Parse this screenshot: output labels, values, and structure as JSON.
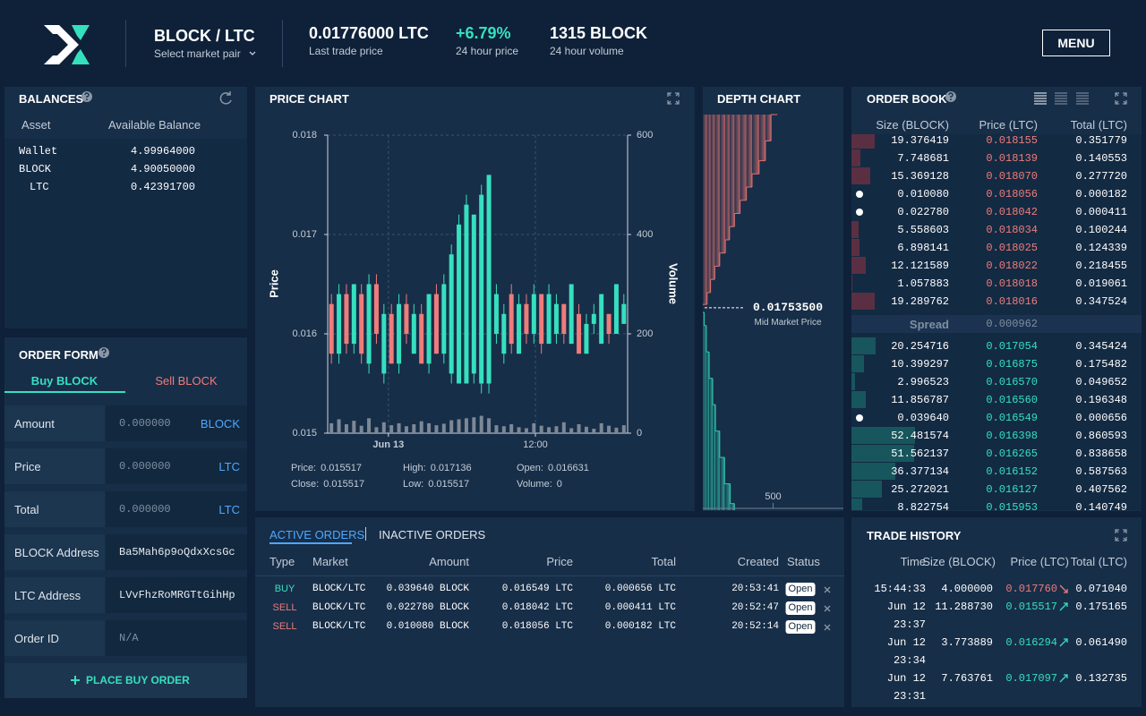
{
  "header": {
    "pair": "BLOCK / LTC",
    "pair_select": "Select market pair",
    "last_price": "0.01776000 LTC",
    "last_price_label": "Last trade price",
    "change": "+6.79%",
    "change_label": "24 hour price",
    "volume": "1315 BLOCK",
    "volume_label": "24 hour volume",
    "menu": "MENU"
  },
  "balances": {
    "title": "BALANCES",
    "columns": [
      "Asset",
      "Available Balance"
    ],
    "rows": [
      [
        "Wallet",
        "4.99964000"
      ],
      [
        "BLOCK",
        "4.90050000"
      ],
      [
        "LTC",
        "0.42391700"
      ]
    ]
  },
  "order_form": {
    "title": "ORDER FORM",
    "tabs": [
      "Buy BLOCK",
      "Sell BLOCK"
    ],
    "fields": [
      {
        "label": "Amount",
        "value": "0.000000",
        "unit": "BLOCK"
      },
      {
        "label": "Price",
        "value": "0.000000",
        "unit": "LTC"
      },
      {
        "label": "Total",
        "value": "0.000000",
        "unit": "LTC"
      },
      {
        "label": "BLOCK Address",
        "value": "Ba5Mah6p9oQdxXcsGc"
      },
      {
        "label": "LTC Address",
        "value": "LVvFhzRoMRGTtGihHp"
      },
      {
        "label": "Order ID",
        "value": "N/A"
      }
    ],
    "button": "PLACE BUY ORDER"
  },
  "price_chart": {
    "type": "candlestick",
    "title": "PRICE CHART",
    "ylabel": "Price",
    "y2label": "Volume",
    "ylim": [
      0.015,
      0.018
    ],
    "yticks": [
      0.015,
      0.016,
      0.017,
      0.018
    ],
    "y2lim": [
      0,
      600
    ],
    "y2ticks": [
      0,
      200,
      400,
      600
    ],
    "xlim": [
      0,
      40
    ],
    "xticks": [
      {
        "value": 8.1,
        "label": "Jun 13"
      },
      {
        "value": 27.7,
        "label": "12:00"
      }
    ],
    "grid": true,
    "up_color": "#35e0bf",
    "down_color": "#ee7c7a",
    "volume_color": "#7d8896",
    "candles": {
      "open": [
        0.0163,
        0.0158,
        0.0164,
        0.0159,
        0.0164,
        0.0157,
        0.0165,
        0.0156,
        0.0162,
        0.0157,
        0.0163,
        0.0158,
        0.0162,
        0.0157,
        0.0164,
        0.0158,
        0.0156,
        0.0155,
        0.0155,
        0.0156,
        0.0155,
        0.0155,
        0.016,
        0.0158,
        0.0164,
        0.0158,
        0.0163,
        0.016,
        0.0164,
        0.0159,
        0.016,
        0.0163,
        0.0159,
        0.0162,
        0.0158,
        0.0161,
        0.0159,
        0.0162,
        0.016,
        0.0161
      ],
      "high": [
        0.0164,
        0.0165,
        0.0165,
        0.0165,
        0.0165,
        0.0166,
        0.0166,
        0.0163,
        0.0163,
        0.0164,
        0.0164,
        0.0163,
        0.0163,
        0.0164,
        0.0165,
        0.0166,
        0.0169,
        0.0172,
        0.0174,
        0.0172,
        0.0175,
        0.0176,
        0.0165,
        0.0163,
        0.0165,
        0.0164,
        0.0164,
        0.0165,
        0.0164,
        0.0165,
        0.0164,
        0.0163,
        0.0165,
        0.0163,
        0.0162,
        0.0163,
        0.0164,
        0.0162,
        0.0165,
        0.0164
      ],
      "low": [
        0.0157,
        0.0157,
        0.0158,
        0.0158,
        0.0157,
        0.0156,
        0.0159,
        0.0155,
        0.0157,
        0.0156,
        0.0159,
        0.0158,
        0.0157,
        0.0156,
        0.0158,
        0.0157,
        0.0155,
        0.0155,
        0.0155,
        0.0155,
        0.0154,
        0.0154,
        0.0159,
        0.0157,
        0.0158,
        0.0158,
        0.0159,
        0.0159,
        0.0158,
        0.0159,
        0.0159,
        0.0159,
        0.0159,
        0.0158,
        0.0158,
        0.016,
        0.0159,
        0.0159,
        0.016,
        0.0161
      ],
      "close": [
        0.0158,
        0.0164,
        0.0159,
        0.0165,
        0.0158,
        0.0165,
        0.016,
        0.0162,
        0.0157,
        0.0163,
        0.016,
        0.0162,
        0.0157,
        0.0164,
        0.0158,
        0.0165,
        0.0168,
        0.0171,
        0.0173,
        0.0172,
        0.0174,
        0.0176,
        0.0164,
        0.0162,
        0.0159,
        0.0163,
        0.016,
        0.0164,
        0.0159,
        0.0164,
        0.0163,
        0.016,
        0.0165,
        0.0158,
        0.0161,
        0.0162,
        0.0164,
        0.016,
        0.0165,
        0.0163
      ],
      "volume": [
        20,
        28,
        18,
        25,
        15,
        30,
        12,
        22,
        16,
        20,
        14,
        18,
        24,
        20,
        16,
        19,
        26,
        28,
        30,
        32,
        35,
        30,
        16,
        14,
        18,
        12,
        10,
        20,
        15,
        12,
        14,
        22,
        10,
        18,
        13,
        9,
        20,
        15,
        11,
        16
      ]
    },
    "info": [
      {
        "label": "Price:",
        "value": "0.015517"
      },
      {
        "label": "High:",
        "value": "0.017136"
      },
      {
        "label": "Open:",
        "value": "0.016631"
      },
      {
        "label": "Close:",
        "value": "0.015517"
      },
      {
        "label": "Low:",
        "value": "0.015517"
      },
      {
        "label": "Volume:",
        "value": "0"
      }
    ]
  },
  "depth_chart": {
    "type": "depth",
    "title": "DEPTH CHART",
    "mid": "0.01753500",
    "mid_label": "Mid Market Price",
    "ylim": [
      0.016,
      0.019
    ],
    "xlim": [
      0,
      1000
    ],
    "xticks": [
      500
    ],
    "ask_color": "#e0716f",
    "bid_color": "#2ec9ad",
    "asks": {
      "prices": [
        0.01756,
        0.01765,
        0.01775,
        0.01785,
        0.01795,
        0.01805,
        0.01815,
        0.01825,
        0.01835,
        0.01845,
        0.01855,
        0.01865,
        0.0188,
        0.019
      ],
      "sizes": [
        30,
        25,
        30,
        35,
        40,
        30,
        35,
        40,
        45,
        40,
        50,
        45,
        40,
        45
      ]
    },
    "bids": {
      "prices": [
        0.0175,
        0.0174,
        0.0172,
        0.017,
        0.0168,
        0.0166,
        0.0164,
        0.0162,
        0.01605
      ],
      "sizes": [
        10,
        15,
        20,
        25,
        20,
        30,
        35,
        40,
        30
      ]
    }
  },
  "order_book": {
    "title": "ORDER BOOK",
    "columns": [
      "Size (BLOCK)",
      "Price (LTC)",
      "Total (LTC)"
    ],
    "ask_color": "#ee7c7a",
    "bid_color": "#35e0bf",
    "asks": [
      {
        "size": "19.376419",
        "price": "0.018155",
        "total": "0.351779",
        "mine": false
      },
      {
        "size": "7.748681",
        "price": "0.018139",
        "total": "0.140553",
        "mine": false
      },
      {
        "size": "15.369128",
        "price": "0.018070",
        "total": "0.277720",
        "mine": false
      },
      {
        "size": "0.010080",
        "price": "0.018056",
        "total": "0.000182",
        "mine": true
      },
      {
        "size": "0.022780",
        "price": "0.018042",
        "total": "0.000411",
        "mine": true
      },
      {
        "size": "5.558603",
        "price": "0.018034",
        "total": "0.100244",
        "mine": false
      },
      {
        "size": "6.898141",
        "price": "0.018025",
        "total": "0.124339",
        "mine": false
      },
      {
        "size": "12.121589",
        "price": "0.018022",
        "total": "0.218455",
        "mine": false
      },
      {
        "size": "1.057883",
        "price": "0.018018",
        "total": "0.019061",
        "mine": false
      },
      {
        "size": "19.289762",
        "price": "0.018016",
        "total": "0.347524",
        "mine": false
      }
    ],
    "spread_label": "Spread",
    "spread": "0.000962",
    "bids": [
      {
        "size": "20.254716",
        "price": "0.017054",
        "total": "0.345424",
        "mine": false
      },
      {
        "size": "10.399297",
        "price": "0.016875",
        "total": "0.175482",
        "mine": false
      },
      {
        "size": "2.996523",
        "price": "0.016570",
        "total": "0.049652",
        "mine": false
      },
      {
        "size": "11.856787",
        "price": "0.016560",
        "total": "0.196348",
        "mine": false
      },
      {
        "size": "0.039640",
        "price": "0.016549",
        "total": "0.000656",
        "mine": true
      },
      {
        "size": "52.481574",
        "price": "0.016398",
        "total": "0.860593",
        "mine": false
      },
      {
        "size": "51.562137",
        "price": "0.016265",
        "total": "0.838658",
        "mine": false
      },
      {
        "size": "36.377134",
        "price": "0.016152",
        "total": "0.587563",
        "mine": false
      },
      {
        "size": "25.272021",
        "price": "0.016127",
        "total": "0.407562",
        "mine": false
      },
      {
        "size": "8.822754",
        "price": "0.015953",
        "total": "0.140749",
        "mine": false
      }
    ]
  },
  "active_orders": {
    "tabs": [
      "ACTIVE ORDERS",
      "INACTIVE ORDERS"
    ],
    "columns": [
      "Type",
      "Market",
      "Amount",
      "Price",
      "Total",
      "Created",
      "Status"
    ],
    "rows": [
      {
        "type": "BUY",
        "color": "#35e0bf",
        "market": "BLOCK/LTC",
        "amount": "0.039640 BLOCK",
        "price": "0.016549 LTC",
        "total": "0.000656 LTC",
        "created": "20:53:41",
        "status": "Open"
      },
      {
        "type": "SELL",
        "color": "#ee7c7a",
        "market": "BLOCK/LTC",
        "amount": "0.022780 BLOCK",
        "price": "0.018042 LTC",
        "total": "0.000411 LTC",
        "created": "20:52:47",
        "status": "Open"
      },
      {
        "type": "SELL",
        "color": "#ee7c7a",
        "market": "BLOCK/LTC",
        "amount": "0.010080 BLOCK",
        "price": "0.018056 LTC",
        "total": "0.000182 LTC",
        "created": "20:52:14",
        "status": "Open"
      }
    ]
  },
  "trade_history": {
    "title": "TRADE HISTORY",
    "columns": [
      "Time",
      "Size (BLOCK)",
      "Price (LTC)",
      "Total (LTC)"
    ],
    "rows": [
      {
        "time": [
          "15:44:33"
        ],
        "size": "4.000000",
        "price": "0.017760",
        "trend": "down",
        "color": "#ee7c7a",
        "total": "0.071040"
      },
      {
        "time": [
          "Jun 12",
          "23:37"
        ],
        "size": "11.288730",
        "price": "0.015517",
        "trend": "up",
        "color": "#35e0bf",
        "total": "0.175165"
      },
      {
        "time": [
          "Jun 12",
          "23:34"
        ],
        "size": "3.773889",
        "price": "0.016294",
        "trend": "up",
        "color": "#35e0bf",
        "total": "0.061490"
      },
      {
        "time": [
          "Jun 12",
          "23:31"
        ],
        "size": "7.763761",
        "price": "0.017097",
        "trend": "up",
        "color": "#35e0bf",
        "total": "0.132735"
      }
    ]
  }
}
